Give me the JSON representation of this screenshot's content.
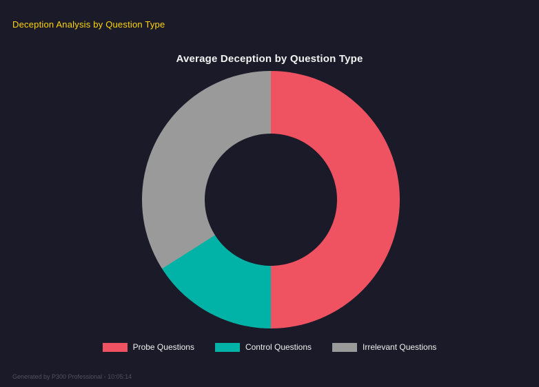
{
  "theme": {
    "bg": "#1a1a28",
    "title": "#f2f2f2",
    "accent-yellow": "#ffd60a",
    "footer": "#50505f"
  },
  "header": {
    "title": "Deception Analysis by Question Type"
  },
  "chart_data": {
    "type": "pie",
    "subtype": "donut",
    "title": "Average Deception by Question Type",
    "categories": [
      "Probe Questions",
      "Control Questions",
      "Irrelevant Questions"
    ],
    "values": [
      50,
      16,
      34
    ],
    "unit": "percent",
    "colors": [
      "#ef5261",
      "#00b3a6",
      "#9a9a9a"
    ],
    "start_angle_deg": 0,
    "direction": "clockwise",
    "legend_position": "bottom",
    "hole_ratio": 0.52
  },
  "footer": {
    "text": "Generated by P300 Professional - 10:05:14"
  }
}
